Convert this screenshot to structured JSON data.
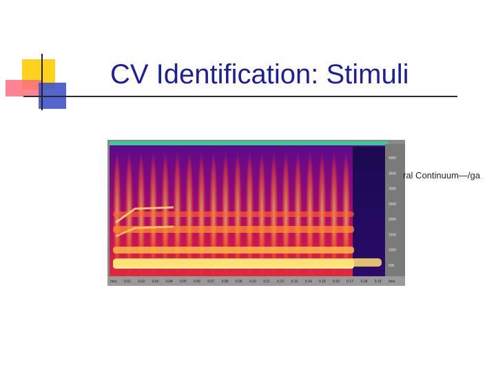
{
  "slide": {
    "title": "CV Identification: Stimuli",
    "caption_visible": "ral Continuum—/ga"
  },
  "spectrogram": {
    "freq_ticks": [
      "4000",
      "3500",
      "3000",
      "2500",
      "2000",
      "1500",
      "1000",
      "500"
    ],
    "time_ticks": [
      "hms",
      "0.01",
      "0.02",
      "0.03",
      "0.04",
      "0.05",
      "0.06",
      "0.07",
      "0.08",
      "0.09",
      "0.10",
      "0.11",
      "0.12",
      "0.13",
      "0.14",
      "0.15",
      "0.16",
      "0.17",
      "0.18",
      "0.19",
      "hms"
    ]
  },
  "colors": {
    "title": "#1e1e96",
    "spectro_bg": "#6a0a9a",
    "energy_low": "#d41c6a",
    "energy_mid": "#ff6a1a",
    "energy_high": "#fff4a0",
    "silence": "#1a0a4a",
    "header_bar": "#3bc99a"
  }
}
